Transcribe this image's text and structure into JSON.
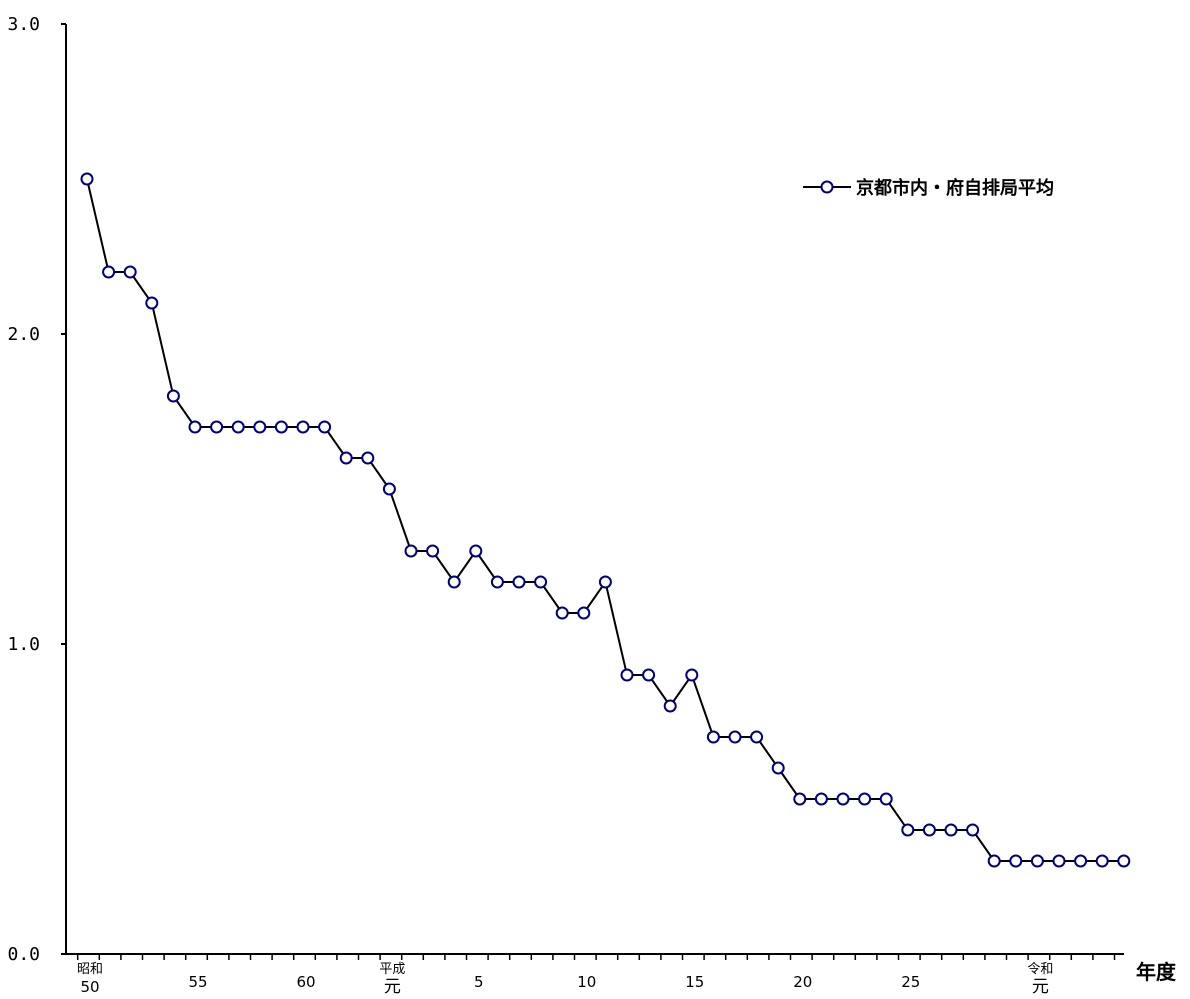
{
  "chart_data": {
    "type": "line",
    "title": "",
    "xlabel": "年度",
    "ylabel": "",
    "ylim": [
      0,
      3
    ],
    "yticks": [
      "0.0",
      "1.0",
      "2.0",
      "3.0"
    ],
    "grid": false,
    "legend_position": "top-right",
    "x_tick_labels": [
      {
        "index": 0,
        "top": "昭和",
        "bottom": "50"
      },
      {
        "index": 5,
        "top": "",
        "bottom": "55"
      },
      {
        "index": 10,
        "top": "",
        "bottom": "60"
      },
      {
        "index": 14,
        "top": "平成",
        "bottom": "元"
      },
      {
        "index": 18,
        "top": "",
        "bottom": "5"
      },
      {
        "index": 23,
        "top": "",
        "bottom": "10"
      },
      {
        "index": 28,
        "top": "",
        "bottom": "15"
      },
      {
        "index": 33,
        "top": "",
        "bottom": "20"
      },
      {
        "index": 38,
        "top": "",
        "bottom": "25"
      },
      {
        "index": 44,
        "top": "令和",
        "bottom": "元"
      }
    ],
    "series": [
      {
        "name": "京都市内・府自排局平均",
        "color": "#000080",
        "line_color": "#000000",
        "values": [
          2.5,
          2.2,
          2.2,
          2.1,
          1.8,
          1.7,
          1.7,
          1.7,
          1.7,
          1.7,
          1.7,
          1.7,
          1.6,
          1.6,
          1.5,
          1.3,
          1.3,
          1.2,
          1.3,
          1.2,
          1.2,
          1.2,
          1.1,
          1.1,
          1.2,
          0.9,
          0.9,
          0.8,
          0.9,
          0.7,
          0.7,
          0.7,
          0.6,
          0.5,
          0.5,
          0.5,
          0.5,
          0.5,
          0.4,
          0.4,
          0.4,
          0.4,
          0.3,
          0.3,
          0.3,
          0.3,
          0.3,
          0.3,
          0.3
        ]
      }
    ]
  }
}
